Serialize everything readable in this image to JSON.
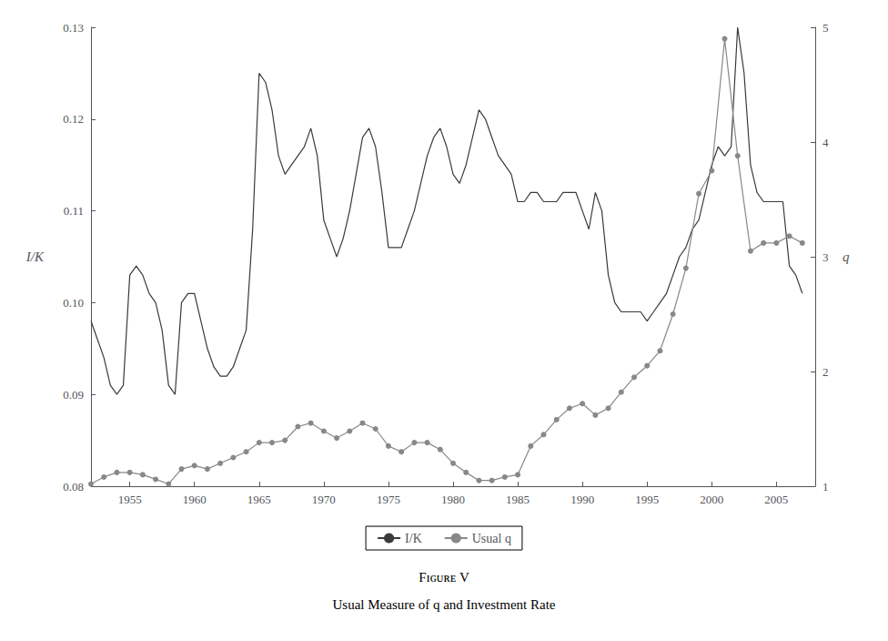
{
  "chart_data": {
    "type": "line",
    "title": "Fɪɢᴜʀᴇ V",
    "subtitle": "Usual Measure of q and Investment Rate",
    "ylabel": "I/K",
    "y2label": "q",
    "series": [
      {
        "name": "I/K",
        "color": "#3a3a3a",
        "line_style": "solid",
        "x": [
          1952,
          1952.5,
          1953,
          1953.5,
          1954,
          1954.5,
          1955,
          1955.5,
          1956,
          1956.5,
          1957,
          1957.5,
          1958,
          1958.5,
          1959,
          1959.5,
          1960,
          1960.5,
          1961,
          1961.5,
          1962,
          1962.5,
          1963,
          1963.5,
          1964,
          1964.5,
          1965,
          1965.5,
          1966,
          1966.5,
          1967,
          1967.5,
          1968,
          1968.5,
          1969,
          1969.5,
          1970,
          1970.5,
          1971,
          1971.5,
          1972,
          1972.5,
          1973,
          1973.5,
          1974,
          1974.5,
          1975,
          1975.5,
          1976,
          1976.5,
          1977,
          1977.5,
          1978,
          1978.5,
          1979,
          1979.5,
          1980,
          1980.5,
          1981,
          1981.5,
          1982,
          1982.5,
          1983,
          1983.5,
          1984,
          1984.5,
          1985,
          1985.5,
          1986,
          1986.5,
          1987,
          1987.5,
          1988,
          1988.5,
          1989,
          1989.5,
          1990,
          1990.5,
          1991,
          1991.5,
          1992,
          1992.5,
          1993,
          1993.5,
          1994,
          1994.5,
          1995,
          1995.5,
          1996,
          1996.5,
          1997,
          1997.5,
          1998,
          1998.5,
          1999,
          1999.5,
          2000,
          2000.5,
          2001,
          2001.5,
          2002,
          2002.5,
          2003,
          2003.5,
          2004,
          2004.5,
          2005,
          2005.5,
          2006,
          2006.5,
          2007
        ],
        "values": [
          0.098,
          0.096,
          0.094,
          0.091,
          0.09,
          0.091,
          0.103,
          0.104,
          0.103,
          0.101,
          0.1,
          0.097,
          0.091,
          0.09,
          0.1,
          0.101,
          0.101,
          0.098,
          0.095,
          0.093,
          0.092,
          0.092,
          0.093,
          0.095,
          0.097,
          0.108,
          0.125,
          0.124,
          0.121,
          0.116,
          0.114,
          0.115,
          0.116,
          0.117,
          0.119,
          0.116,
          0.109,
          0.107,
          0.105,
          0.107,
          0.11,
          0.114,
          0.118,
          0.119,
          0.117,
          0.112,
          0.106,
          0.106,
          0.106,
          0.108,
          0.11,
          0.113,
          0.116,
          0.118,
          0.119,
          0.117,
          0.114,
          0.113,
          0.115,
          0.118,
          0.121,
          0.12,
          0.118,
          0.116,
          0.115,
          0.114,
          0.111,
          0.111,
          0.112,
          0.112,
          0.111,
          0.111,
          0.111,
          0.112,
          0.112,
          0.112,
          0.11,
          0.108,
          0.112,
          0.11,
          0.103,
          0.1,
          0.099,
          0.099,
          0.099,
          0.099,
          0.098,
          0.099,
          0.1,
          0.101,
          0.103,
          0.105,
          0.106,
          0.108,
          0.109,
          0.112,
          0.115,
          0.117,
          0.116,
          0.117,
          0.13,
          0.125,
          0.115,
          0.112,
          0.111,
          0.111,
          0.111,
          0.111,
          0.104,
          0.103,
          0.101
        ]
      },
      {
        "name": "Usual q",
        "color": "#888888",
        "axis": "y2",
        "marker": "circle",
        "line_style": "solid",
        "x": [
          1952,
          1953,
          1954,
          1955,
          1956,
          1957,
          1958,
          1959,
          1960,
          1961,
          1962,
          1963,
          1964,
          1965,
          1966,
          1967,
          1968,
          1969,
          1970,
          1971,
          1972,
          1973,
          1974,
          1975,
          1976,
          1977,
          1978,
          1979,
          1980,
          1981,
          1982,
          1983,
          1984,
          1985,
          1986,
          1987,
          1988,
          1989,
          1990,
          1991,
          1992,
          1993,
          1994,
          1995,
          1996,
          1997,
          1998,
          1999,
          2000,
          2001,
          2002,
          2003,
          2004,
          2005,
          2006,
          2007
        ],
        "values": [
          1.02,
          1.08,
          1.12,
          1.12,
          1.1,
          1.06,
          1.02,
          1.15,
          1.18,
          1.15,
          1.2,
          1.25,
          1.3,
          1.38,
          1.38,
          1.4,
          1.52,
          1.55,
          1.48,
          1.42,
          1.48,
          1.55,
          1.5,
          1.35,
          1.3,
          1.38,
          1.38,
          1.32,
          1.2,
          1.12,
          1.05,
          1.05,
          1.08,
          1.1,
          1.35,
          1.45,
          1.58,
          1.68,
          1.72,
          1.62,
          1.68,
          1.82,
          1.95,
          2.05,
          2.18,
          2.5,
          2.9,
          3.55,
          3.75,
          4.9,
          3.88,
          3.05,
          3.12,
          3.12,
          3.18,
          3.12
        ]
      }
    ],
    "xlim": [
      1952,
      2008
    ],
    "xticks": [
      1955,
      1960,
      1965,
      1970,
      1975,
      1980,
      1985,
      1990,
      1995,
      2000,
      2005
    ],
    "ylim": [
      0.08,
      0.13
    ],
    "yticks": [
      0.08,
      0.09,
      {
        "value": 0.1,
        "label": "0.10"
      },
      0.11,
      0.12,
      0.13
    ],
    "y2lim": [
      1.0,
      5.0
    ],
    "y2ticks": [
      1,
      2,
      3,
      4,
      5
    ],
    "grid": false,
    "legend": "bottom"
  }
}
